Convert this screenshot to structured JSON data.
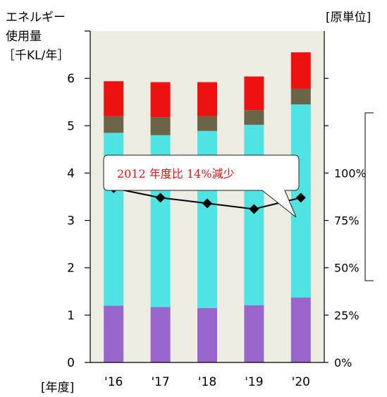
{
  "labels": {
    "y_left_line1": "エネルギー",
    "y_left_line2": "使用量",
    "y_left_unit": "［千KL/年］",
    "y_right_title": "[原単位]",
    "x_unit": "[年度]",
    "annotation": "2012 年度比 14%減少"
  },
  "colors": {
    "plot_bg": "#eeebe0",
    "purple": "#9966cc",
    "cyan": "#4fe3e3",
    "olive": "#6b6447",
    "red": "#ee1111",
    "callout_border": "#222222",
    "annotation_text": "#ee1111"
  },
  "chart_data": {
    "type": "bar",
    "stacked": true,
    "categories": [
      "'16",
      "'17",
      "'18",
      "'19",
      "'20"
    ],
    "series": [
      {
        "color": "#9966cc",
        "values": [
          1.2,
          1.17,
          1.15,
          1.21,
          1.37
        ]
      },
      {
        "color": "#4fe3e3",
        "values": [
          3.65,
          3.63,
          3.74,
          3.81,
          4.08
        ]
      },
      {
        "color": "#6b6447",
        "values": [
          0.35,
          0.38,
          0.31,
          0.31,
          0.33
        ]
      },
      {
        "color": "#ee1111",
        "values": [
          0.74,
          0.74,
          0.72,
          0.71,
          0.77
        ]
      }
    ],
    "line_series": {
      "axis": "right",
      "values": [
        92,
        87,
        84,
        81,
        87
      ],
      "unit": "%"
    },
    "y_left": {
      "range": [
        0,
        7
      ],
      "ticks": [
        "0",
        "1",
        "2",
        "3",
        "4",
        "5",
        "6"
      ],
      "tick_values": [
        0,
        1,
        2,
        3,
        4,
        5,
        6
      ]
    },
    "y_right": {
      "range": [
        0,
        175
      ],
      "tick_labels": [
        "0%",
        "25%",
        "50%",
        "75%",
        "100%"
      ],
      "tick_values": [
        0,
        25,
        50,
        75,
        100
      ],
      "minor_values": [
        125,
        150
      ]
    },
    "annotation": "2012 年度比 14%減少"
  }
}
